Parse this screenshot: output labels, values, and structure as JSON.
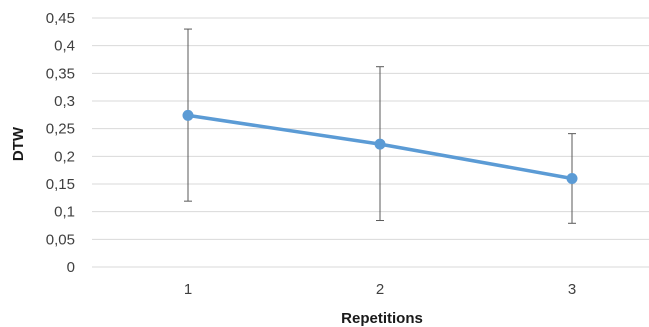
{
  "chart_data": {
    "type": "line",
    "title": "",
    "xlabel": "Repetitions",
    "ylabel": "DTW",
    "categories": [
      "1",
      "2",
      "3"
    ],
    "series": [
      {
        "values": [
          0.274,
          0.222,
          0.16
        ],
        "error_low": [
          0.119,
          0.084,
          0.079
        ],
        "error_high": [
          0.43,
          0.362,
          0.241
        ],
        "color": "#5b9bd5"
      }
    ],
    "ylim": [
      0,
      0.45
    ],
    "y_ticks": [
      {
        "value": 0,
        "label": "0"
      },
      {
        "value": 0.05,
        "label": "0,05"
      },
      {
        "value": 0.1,
        "label": "0,1"
      },
      {
        "value": 0.15,
        "label": "0,15"
      },
      {
        "value": 0.2,
        "label": "0,2"
      },
      {
        "value": 0.25,
        "label": "0,25"
      },
      {
        "value": 0.3,
        "label": "0,3"
      },
      {
        "value": 0.35,
        "label": "0,35"
      },
      {
        "value": 0.4,
        "label": "0,4"
      },
      {
        "value": 0.45,
        "label": "0,45"
      }
    ],
    "grid": true,
    "legend": "none",
    "colors": {
      "gridline": "#d9d9d9",
      "errorbar": "#595959",
      "series": "#5b9bd5"
    }
  }
}
